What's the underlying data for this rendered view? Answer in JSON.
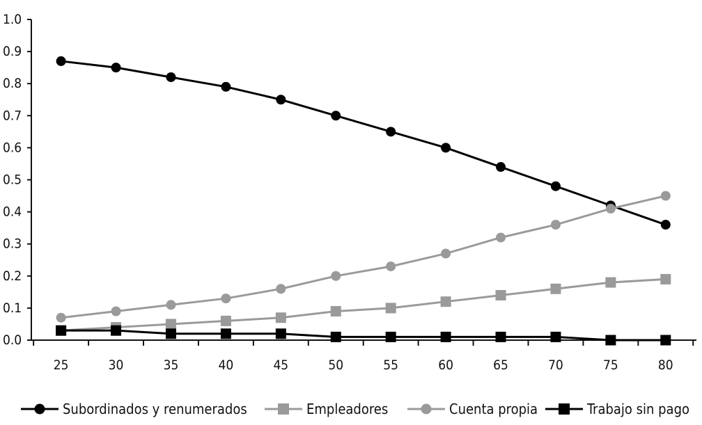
{
  "chart_data": {
    "type": "line",
    "title": "",
    "xlabel": "",
    "ylabel": "",
    "x": [
      25,
      30,
      35,
      40,
      45,
      50,
      55,
      60,
      65,
      70,
      75,
      80
    ],
    "xlim": [
      22.3,
      82.8
    ],
    "ylim": [
      0,
      1.0
    ],
    "y_ticks": [
      "0.0",
      "0.1",
      "0.2",
      "0.3",
      "0.4",
      "0.5",
      "0.6",
      "0.7",
      "0.8",
      "0.9",
      "1.0"
    ],
    "x_ticks": [
      "25",
      "30",
      "35",
      "40",
      "45",
      "50",
      "55",
      "60",
      "65",
      "70",
      "75",
      "80"
    ],
    "grid": false,
    "legend_position": "bottom",
    "series": [
      {
        "name": "Subordinados y renumerados",
        "color": "#000000",
        "marker": "circle",
        "values": [
          0.87,
          0.85,
          0.82,
          0.79,
          0.75,
          0.7,
          0.65,
          0.6,
          0.54,
          0.48,
          0.42,
          0.36
        ]
      },
      {
        "name": "Empleadores",
        "color": "#9a9a9a",
        "marker": "square",
        "values": [
          0.03,
          0.04,
          0.05,
          0.06,
          0.07,
          0.09,
          0.1,
          0.12,
          0.14,
          0.16,
          0.18,
          0.19
        ]
      },
      {
        "name": "Cuenta propia",
        "color": "#9a9a9a",
        "marker": "circle",
        "values": [
          0.07,
          0.09,
          0.11,
          0.13,
          0.16,
          0.2,
          0.23,
          0.27,
          0.32,
          0.36,
          0.41,
          0.45
        ]
      },
      {
        "name": "Trabajo sin pago",
        "color": "#000000",
        "marker": "square",
        "values": [
          0.03,
          0.03,
          0.02,
          0.02,
          0.02,
          0.01,
          0.01,
          0.01,
          0.01,
          0.01,
          0.0,
          0.0
        ]
      }
    ]
  }
}
